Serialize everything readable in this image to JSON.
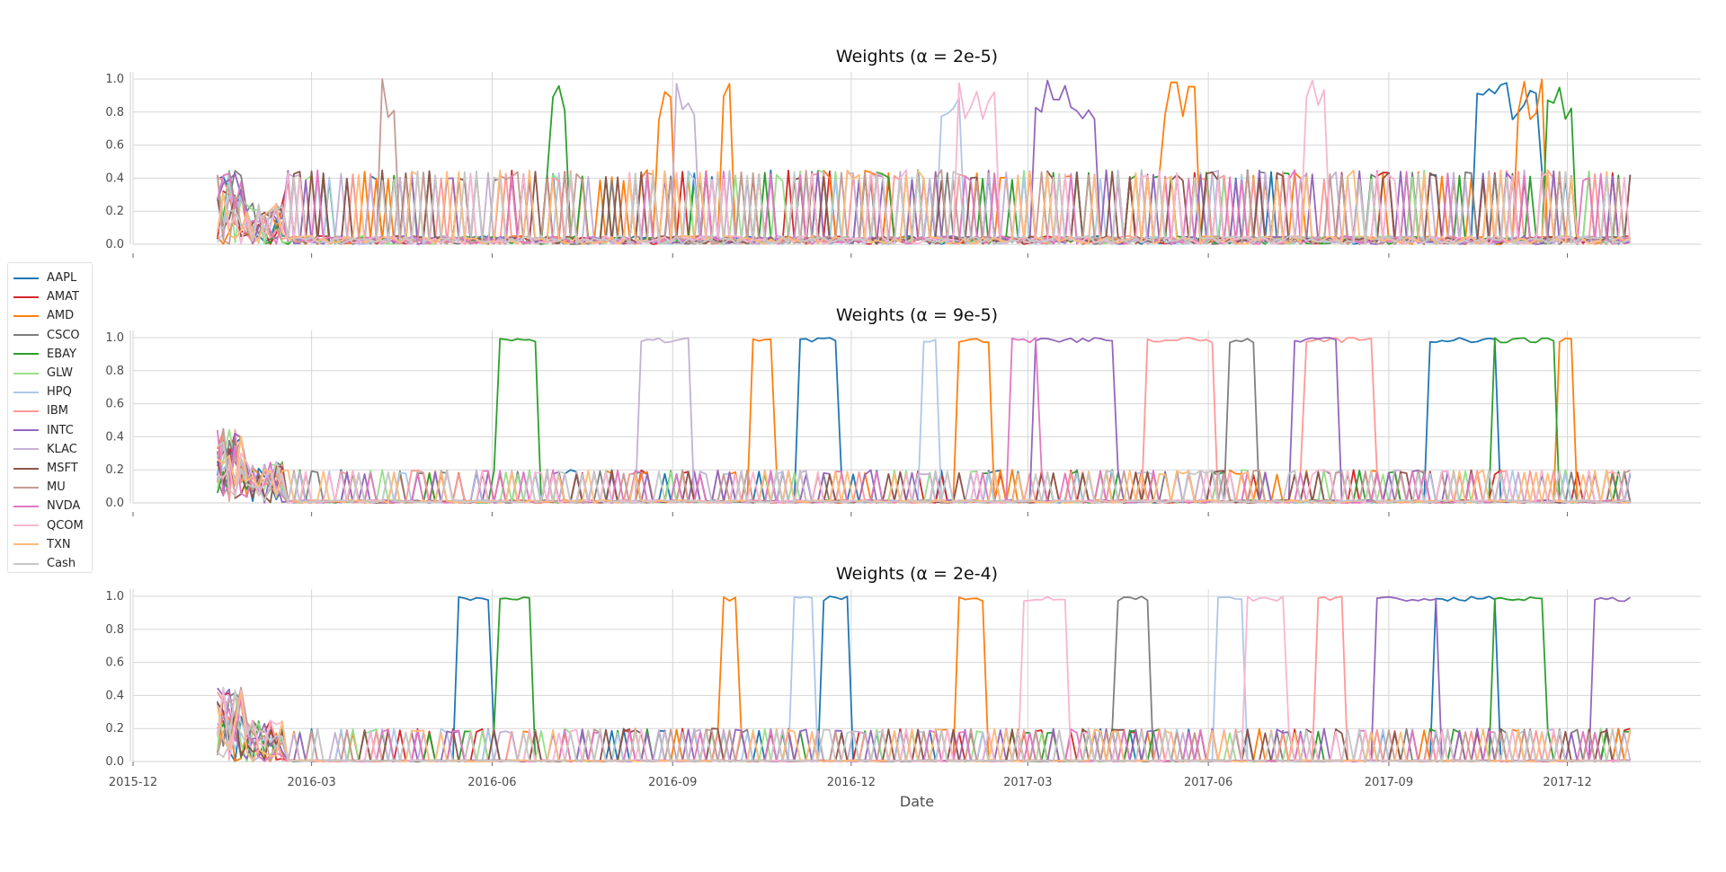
{
  "chart_data": [
    {
      "type": "line",
      "title": "Weights (α = 2e-5)",
      "xlabel": "",
      "ylabel": "",
      "xlim": [
        "2015-12-01",
        "2018-02-07"
      ],
      "ylim": [
        0.0,
        1.0
      ],
      "yticks": [
        "0.0",
        "0.2",
        "0.4",
        "0.6",
        "0.8",
        "1.0"
      ],
      "grid": true,
      "dominant": [
        {
          "name": "AAPL",
          "windows": [
            [
              "2017-10-15",
              "2017-11-15"
            ]
          ]
        },
        {
          "name": "AMD",
          "windows": [
            [
              "2016-08-25",
              "2016-09-02"
            ],
            [
              "2016-09-25",
              "2016-10-02"
            ],
            [
              "2017-05-10",
              "2017-05-25"
            ],
            [
              "2017-11-05",
              "2017-11-20"
            ]
          ]
        },
        {
          "name": "EBAY",
          "windows": [
            [
              "2016-07-01",
              "2016-07-10"
            ],
            [
              "2017-11-20",
              "2017-12-05"
            ]
          ]
        },
        {
          "name": "INTC",
          "windows": [
            [
              "2017-03-05",
              "2017-04-05"
            ]
          ]
        },
        {
          "name": "KLAC",
          "windows": [
            [
              "2016-09-01",
              "2016-09-12"
            ]
          ]
        },
        {
          "name": "QCOM",
          "windows": [
            [
              "2017-01-25",
              "2017-02-12"
            ],
            [
              "2017-07-20",
              "2017-08-01"
            ]
          ]
        },
        {
          "name": "MU",
          "windows": [
            [
              "2016-04-05",
              "2016-04-12"
            ]
          ]
        },
        {
          "name": "HPQ",
          "windows": [
            [
              "2017-01-15",
              "2017-01-25"
            ]
          ]
        }
      ]
    },
    {
      "type": "line",
      "title": "Weights (α = 9e-5)",
      "xlabel": "",
      "ylabel": "",
      "xlim": [
        "2015-12-01",
        "2018-02-07"
      ],
      "ylim": [
        0.0,
        1.0
      ],
      "yticks": [
        "0.0",
        "0.2",
        "0.4",
        "0.6",
        "0.8",
        "1.0"
      ],
      "grid": true,
      "dominant": [
        {
          "name": "AAPL",
          "windows": [
            [
              "2016-11-05",
              "2016-11-25"
            ],
            [
              "2017-09-20",
              "2017-10-25"
            ]
          ]
        },
        {
          "name": "AMD",
          "windows": [
            [
              "2016-10-10",
              "2016-10-22"
            ],
            [
              "2017-01-25",
              "2017-02-10"
            ],
            [
              "2017-11-25",
              "2017-12-05"
            ]
          ]
        },
        {
          "name": "CSCO",
          "windows": [
            [
              "2017-06-10",
              "2017-06-25"
            ]
          ]
        },
        {
          "name": "EBAY",
          "windows": [
            [
              "2016-06-05",
              "2016-06-25"
            ],
            [
              "2017-10-25",
              "2017-11-25"
            ]
          ]
        },
        {
          "name": "INTC",
          "windows": [
            [
              "2017-03-05",
              "2017-04-15"
            ],
            [
              "2017-07-15",
              "2017-08-05"
            ]
          ]
        },
        {
          "name": "IBM",
          "windows": [
            [
              "2017-05-01",
              "2017-06-05"
            ],
            [
              "2017-07-20",
              "2017-08-25"
            ]
          ]
        },
        {
          "name": "KLAC",
          "windows": [
            [
              "2016-08-15",
              "2016-09-10"
            ]
          ]
        },
        {
          "name": "NVDA",
          "windows": [
            [
              "2017-02-20",
              "2017-03-05"
            ]
          ]
        },
        {
          "name": "HPQ",
          "windows": [
            [
              "2017-01-05",
              "2017-01-15"
            ]
          ]
        }
      ]
    },
    {
      "type": "line",
      "title": "Weights (α = 2e-4)",
      "xlabel": "Date",
      "ylabel": "",
      "xlim": [
        "2015-12-01",
        "2018-02-07"
      ],
      "ylim": [
        0.0,
        1.0
      ],
      "yticks": [
        "0.0",
        "0.2",
        "0.4",
        "0.6",
        "0.8",
        "1.0"
      ],
      "xticks": [
        "2015-12",
        "2016-03",
        "2016-06",
        "2016-09",
        "2016-12",
        "2017-03",
        "2017-06",
        "2017-09",
        "2017-12"
      ],
      "grid": true,
      "dominant": [
        {
          "name": "AAPL",
          "windows": [
            [
              "2016-05-15",
              "2016-06-01"
            ],
            [
              "2016-11-15",
              "2016-12-01"
            ],
            [
              "2017-09-25",
              "2017-10-25"
            ]
          ]
        },
        {
          "name": "AMD",
          "windows": [
            [
              "2016-09-25",
              "2016-10-05"
            ],
            [
              "2017-01-25",
              "2017-02-08"
            ]
          ]
        },
        {
          "name": "CSCO",
          "windows": [
            [
              "2017-04-15",
              "2017-05-01"
            ]
          ]
        },
        {
          "name": "EBAY",
          "windows": [
            [
              "2016-06-05",
              "2016-06-20"
            ],
            [
              "2017-10-25",
              "2017-11-20"
            ]
          ]
        },
        {
          "name": "INTC",
          "windows": [
            [
              "2017-08-25",
              "2017-09-25"
            ],
            [
              "2017-12-15",
              "2018-01-05"
            ]
          ]
        },
        {
          "name": "IBM",
          "windows": [
            [
              "2017-07-25",
              "2017-08-10"
            ]
          ]
        },
        {
          "name": "QCOM",
          "windows": [
            [
              "2017-02-25",
              "2017-03-20"
            ],
            [
              "2017-06-20",
              "2017-07-10"
            ]
          ]
        },
        {
          "name": "HPQ",
          "windows": [
            [
              "2016-11-01",
              "2016-11-12"
            ],
            [
              "2017-06-05",
              "2017-06-20"
            ]
          ]
        }
      ]
    }
  ],
  "legend": {
    "placement": "left",
    "items": [
      {
        "name": "AAPL",
        "color": "#1f77b4"
      },
      {
        "name": "AMAT",
        "color": "#d62728"
      },
      {
        "name": "AMD",
        "color": "#ff7f0e"
      },
      {
        "name": "CSCO",
        "color": "#7f7f7f"
      },
      {
        "name": "EBAY",
        "color": "#2ca02c"
      },
      {
        "name": "GLW",
        "color": "#98df8a"
      },
      {
        "name": "HPQ",
        "color": "#aec7e8"
      },
      {
        "name": "IBM",
        "color": "#ff9896"
      },
      {
        "name": "INTC",
        "color": "#9467bd"
      },
      {
        "name": "KLAC",
        "color": "#c5b0d5"
      },
      {
        "name": "MSFT",
        "color": "#8c564b"
      },
      {
        "name": "MU",
        "color": "#c49c94"
      },
      {
        "name": "NVDA",
        "color": "#e377c2"
      },
      {
        "name": "QCOM",
        "color": "#f7b6d2"
      },
      {
        "name": "TXN",
        "color": "#ffbb78"
      },
      {
        "name": "Cash",
        "color": "#c7c7c7"
      }
    ]
  }
}
